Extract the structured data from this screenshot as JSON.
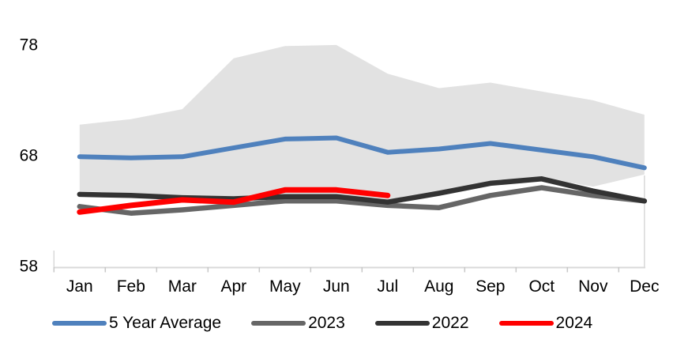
{
  "chart_data": {
    "type": "line",
    "title": "",
    "xlabel": "",
    "ylabel": "",
    "categories": [
      "Jan",
      "Feb",
      "Mar",
      "Apr",
      "May",
      "Jun",
      "Jul",
      "Aug",
      "Sep",
      "Oct",
      "Nov",
      "Dec"
    ],
    "y_ticks": [
      "78",
      "68",
      "58"
    ],
    "y_tick_values": [
      78,
      68,
      58
    ],
    "ylim": [
      58,
      79.5
    ],
    "grid": false,
    "legend_position": "bottom",
    "band": {
      "color": "#E2E2E2",
      "top": [
        70.9,
        71.4,
        72.3,
        76.9,
        78.0,
        78.1,
        75.5,
        74.2,
        74.7,
        73.9,
        73.1,
        71.8
      ],
      "bottom": [
        64.9,
        64.7,
        64.5,
        64.3,
        64.3,
        64.4,
        64.0,
        64.8,
        65.6,
        66.1,
        65.3,
        66.4
      ]
    },
    "series": [
      {
        "name": "5 Year Average",
        "color": "#4F81BD",
        "width": 6,
        "values": [
          68.0,
          67.9,
          68.0,
          68.8,
          69.6,
          69.7,
          68.4,
          68.7,
          69.2,
          68.6,
          68.0,
          67.0
        ]
      },
      {
        "name": "2023",
        "color": "#666666",
        "width": 6.5,
        "values": [
          63.5,
          62.9,
          63.2,
          63.6,
          64.0,
          64.0,
          63.6,
          63.4,
          64.5,
          65.2,
          64.5,
          64.0
        ]
      },
      {
        "name": "2022",
        "color": "#333333",
        "width": 6.5,
        "values": [
          64.6,
          64.5,
          64.3,
          64.2,
          64.4,
          64.4,
          63.9,
          64.7,
          65.6,
          66.0,
          64.9,
          64.0
        ]
      },
      {
        "name": "2024",
        "color": "#FF0000",
        "width": 7,
        "values": [
          63.0,
          63.6,
          64.1,
          63.9,
          65.0,
          65.0,
          64.5,
          null,
          null,
          null,
          null,
          null
        ]
      }
    ],
    "axis_color": "#D9D9D9",
    "tick_color": "#C8C8C8"
  }
}
